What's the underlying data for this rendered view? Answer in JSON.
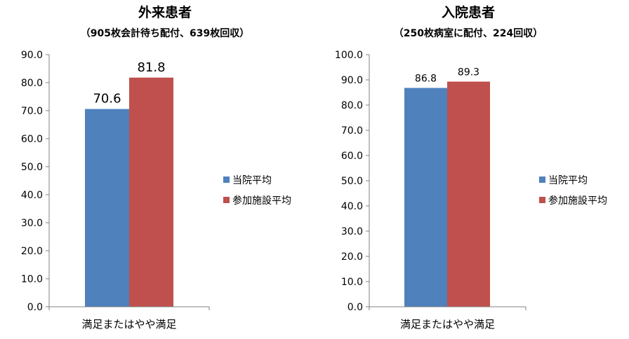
{
  "colors": {
    "blue": "#4f81bd",
    "red": "#c0504d"
  },
  "chart_data": [
    {
      "type": "bar",
      "title": "外来患者",
      "subtitle": "（905枚会計待ち配付、639枚回収）",
      "categories": [
        "満足またはやや満足"
      ],
      "series": [
        {
          "name": "当院平均",
          "values": [
            70.6
          ],
          "color": "#4f81bd"
        },
        {
          "name": "参加施設平均",
          "values": [
            81.8
          ],
          "color": "#c0504d"
        }
      ],
      "ylim": [
        0,
        90
      ],
      "ytick_step": 10,
      "ytick_labels": [
        "0.0",
        "10.0",
        "20.0",
        "30.0",
        "40.0",
        "50.0",
        "60.0",
        "70.0",
        "80.0",
        "90.0"
      ],
      "data_labels": [
        "70.6",
        "81.8"
      ],
      "legend": "right",
      "grid": false
    },
    {
      "type": "bar",
      "title": "入院患者",
      "subtitle": "（250枚病室に配付、224回収）",
      "categories": [
        "満足またはやや満足"
      ],
      "series": [
        {
          "name": "当院平均",
          "values": [
            86.8
          ],
          "color": "#4f81bd"
        },
        {
          "name": "参加施設平均",
          "values": [
            89.3
          ],
          "color": "#c0504d"
        }
      ],
      "ylim": [
        0,
        100
      ],
      "ytick_step": 10,
      "ytick_labels": [
        "0.0",
        "10.0",
        "20.0",
        "30.0",
        "40.0",
        "50.0",
        "60.0",
        "70.0",
        "80.0",
        "90.0",
        "100.0"
      ],
      "data_labels": [
        "86.8",
        "89.3"
      ],
      "legend": "right",
      "grid": false
    }
  ]
}
